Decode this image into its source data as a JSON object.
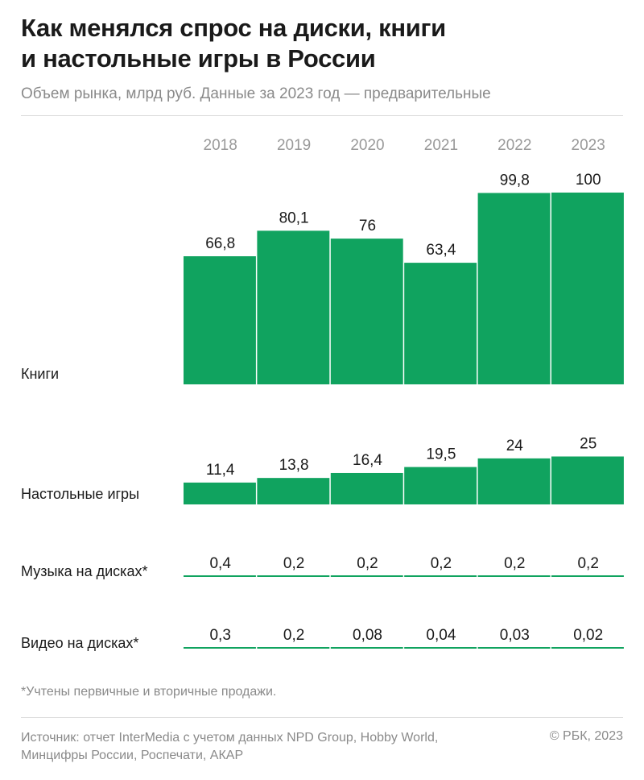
{
  "header": {
    "title_line1": "Как менялся спрос на диски, книги",
    "title_line2": "и настольные игры в России",
    "subtitle": "Объем рынка, млрд руб. Данные за 2023 год — предварительные"
  },
  "chart_data": {
    "type": "bar",
    "title": "Как менялся спрос на диски, книги и настольные игры в России",
    "subtitle": "Объем рынка, млрд руб. Данные за 2023 год — предварительные",
    "unit": "млрд руб.",
    "categories": [
      "2018",
      "2019",
      "2020",
      "2021",
      "2022",
      "2023"
    ],
    "series": [
      {
        "name": "Книги",
        "values": [
          66.8,
          80.1,
          76,
          63.4,
          99.8,
          100
        ],
        "labels": [
          "66,8",
          "80,1",
          "76",
          "63,4",
          "99,8",
          "100"
        ]
      },
      {
        "name": "Настольные игры",
        "values": [
          11.4,
          13.8,
          16.4,
          19.5,
          24,
          25
        ],
        "labels": [
          "11,4",
          "13,8",
          "16,4",
          "19,5",
          "24",
          "25"
        ]
      },
      {
        "name": "Музыка на дисках*",
        "values": [
          0.4,
          0.2,
          0.2,
          0.2,
          0.2,
          0.2
        ],
        "labels": [
          "0,4",
          "0,2",
          "0,2",
          "0,2",
          "0,2",
          "0,2"
        ]
      },
      {
        "name": "Видео на дисках*",
        "values": [
          0.3,
          0.2,
          0.08,
          0.04,
          0.03,
          0.02
        ],
        "labels": [
          "0,3",
          "0,2",
          "0,08",
          "0,04",
          "0,03",
          "0,02"
        ]
      }
    ],
    "colors": {
      "bar": "#10a35f",
      "year_label": "#999999",
      "value_label": "#1a1a1a"
    }
  },
  "footer": {
    "footnote": "*Учтены первичные и вторичные продажи.",
    "source_line1": "Источник: отчет InterMedia с учетом данных NPD Group, Hobby World,",
    "source_line2": "Минцифры России, Роспечати, АКАР",
    "copyright": "© РБК, 2023"
  }
}
